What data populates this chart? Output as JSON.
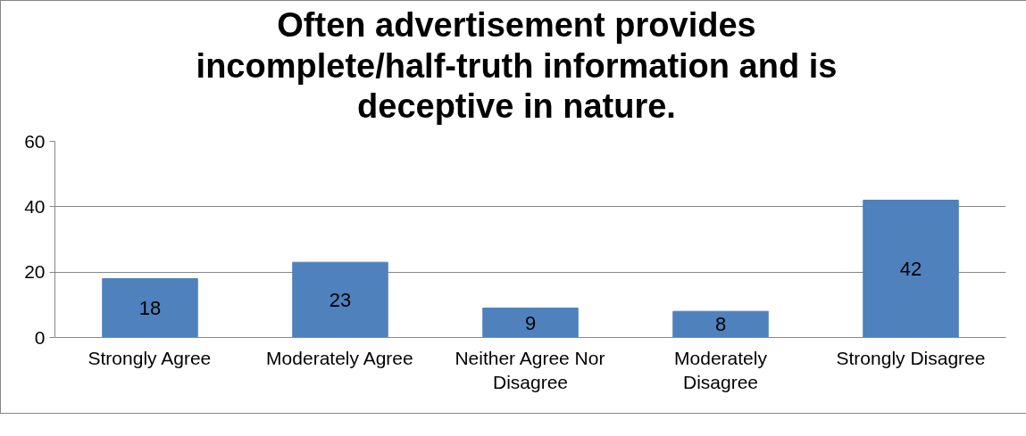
{
  "chart_data": {
    "type": "bar",
    "title": "Often advertisement provides incomplete/half-truth information and is deceptive in nature.",
    "categories": [
      "Strongly Agree",
      "Moderately Agree",
      "Neither Agree Nor Disagree",
      "Moderately Disagree",
      "Strongly Disagree"
    ],
    "values": [
      18,
      23,
      9,
      8,
      42
    ],
    "color": "#4f81bd",
    "ylim": [
      0,
      60
    ],
    "yticks": [
      0,
      20,
      40,
      60
    ],
    "grid": "y",
    "data_labels": true
  }
}
